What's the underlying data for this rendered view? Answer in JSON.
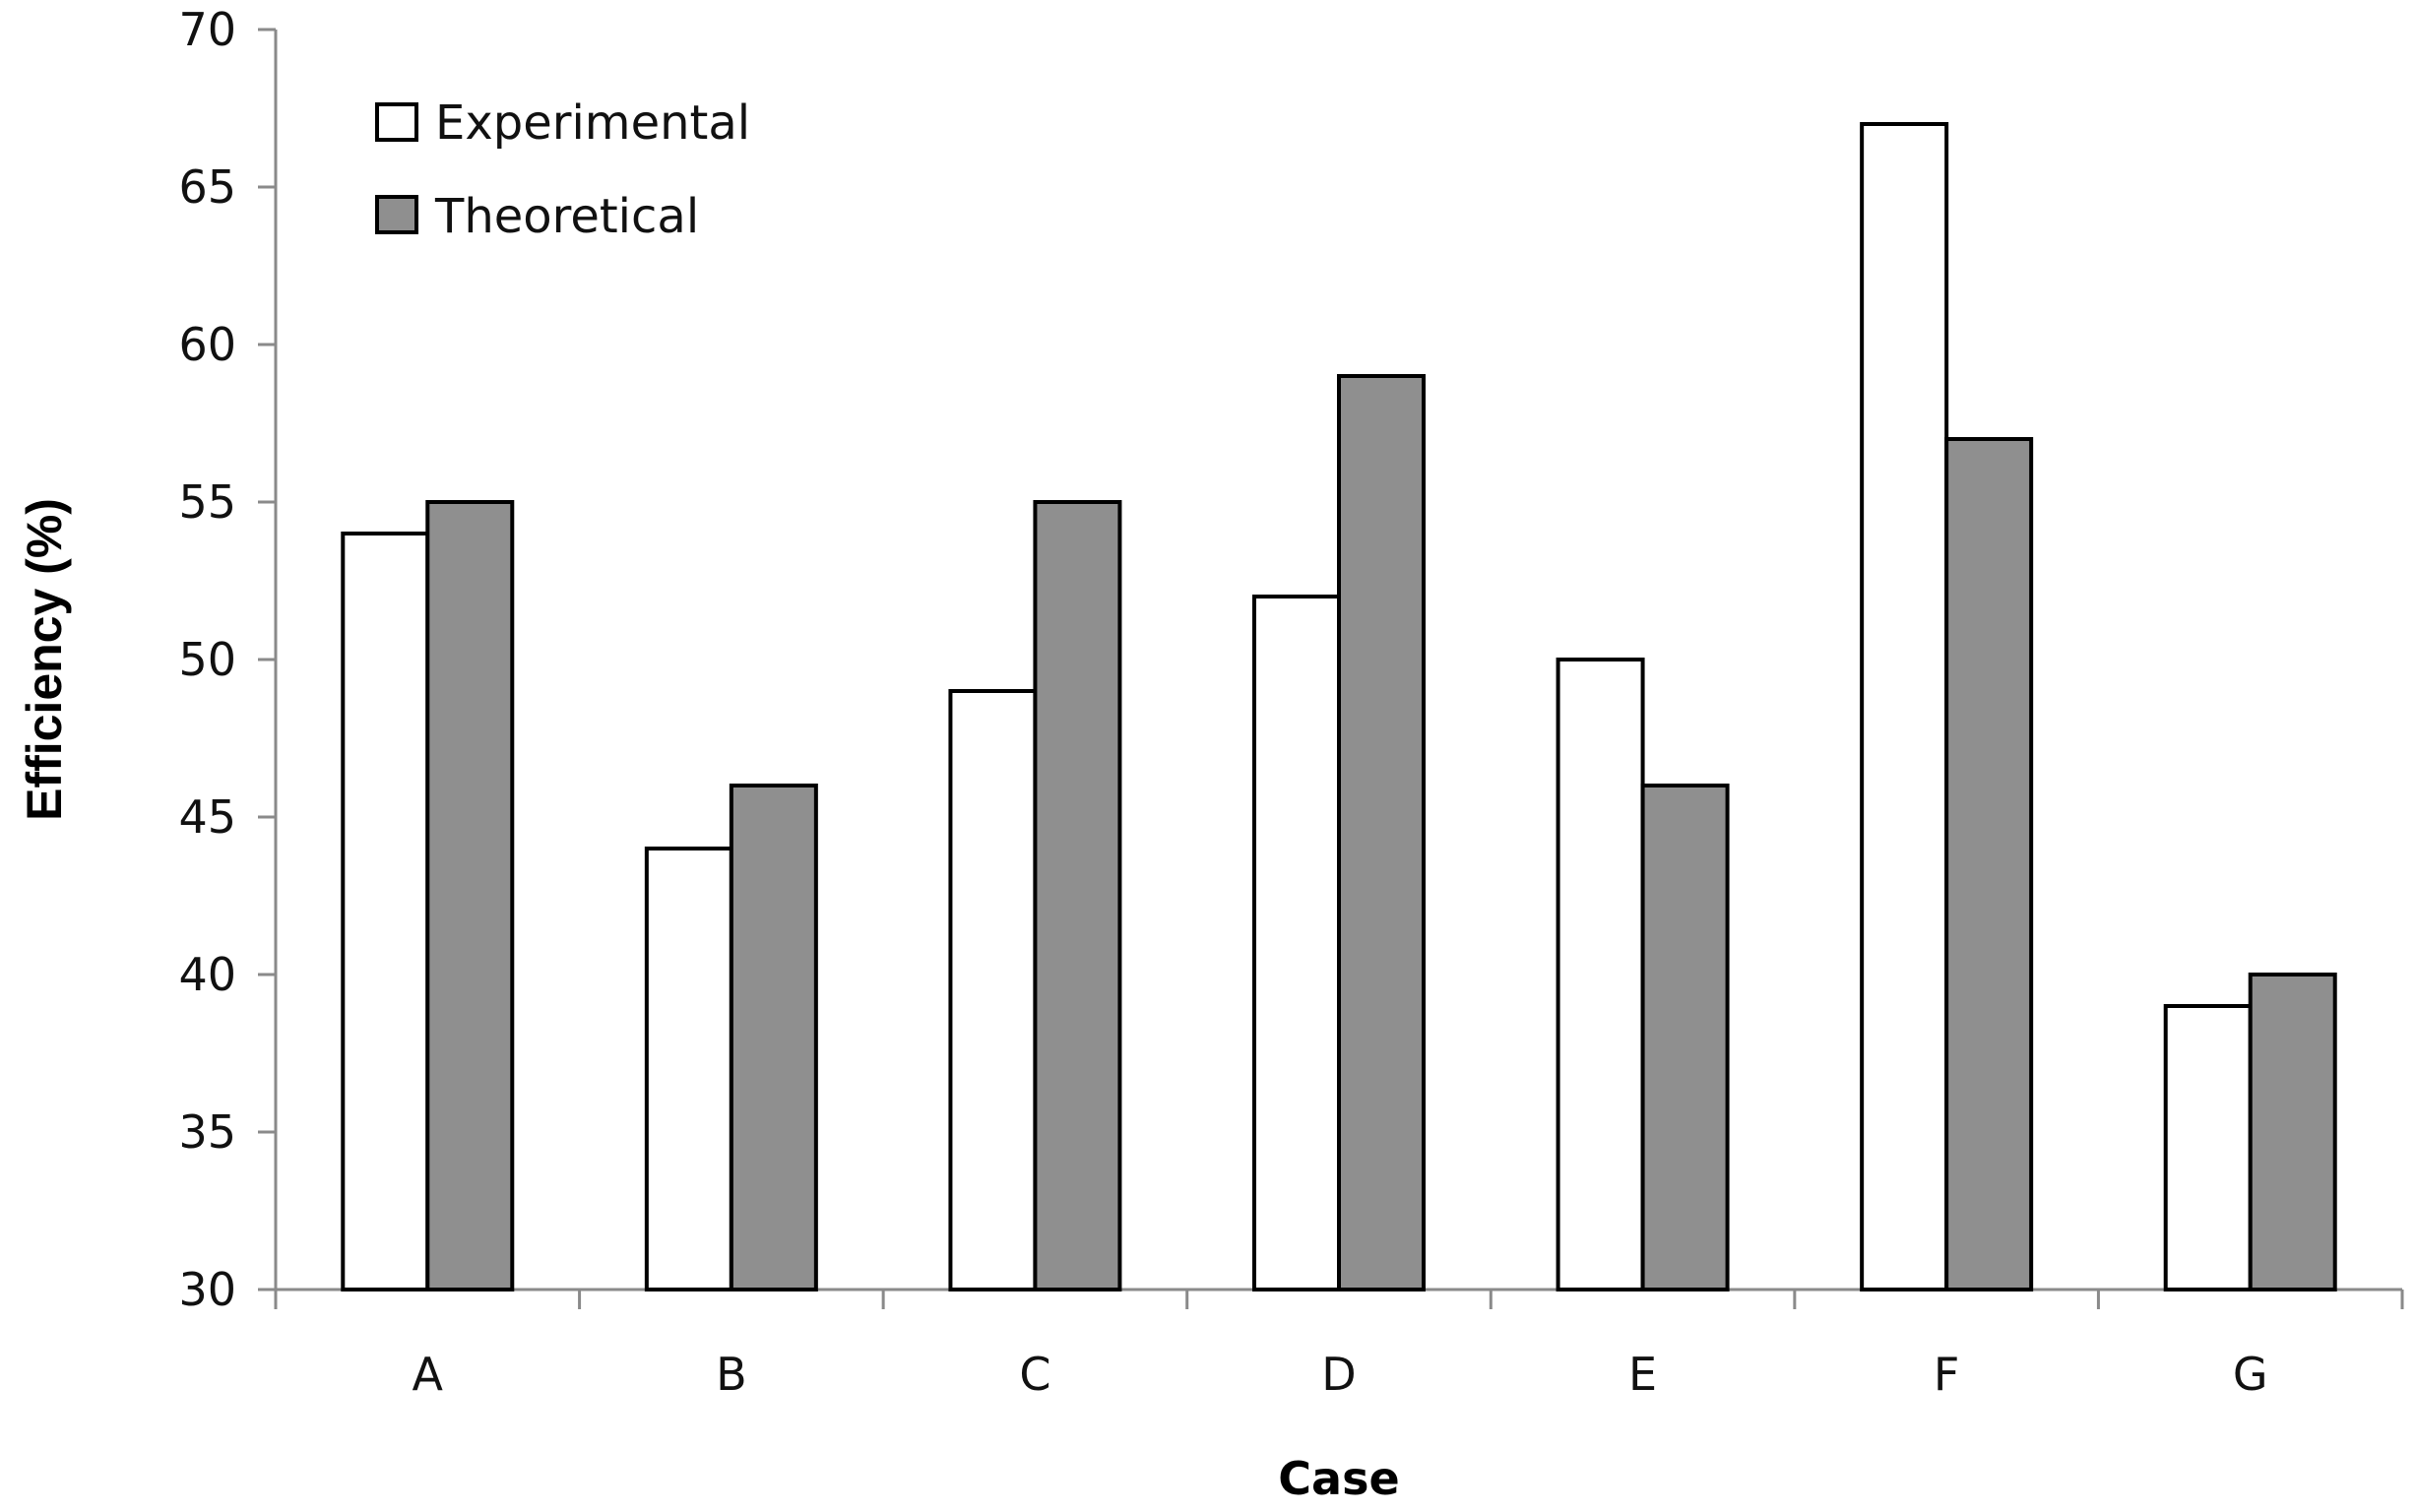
{
  "chart_data": {
    "type": "bar",
    "title": "",
    "xlabel": "Case",
    "ylabel": "Efficiency (%)",
    "ylim": [
      30,
      70
    ],
    "yticks": [
      30,
      35,
      40,
      45,
      50,
      55,
      60,
      65,
      70
    ],
    "categories": [
      "A",
      "B",
      "C",
      "D",
      "E",
      "F",
      "G"
    ],
    "series": [
      {
        "name": "Experimental",
        "color": "#ffffff",
        "values": [
          54,
          44,
          49,
          52,
          50,
          67,
          39
        ]
      },
      {
        "name": "Theoretical",
        "color": "#8f8f8f",
        "values": [
          55,
          46,
          55,
          59,
          46,
          57,
          40
        ]
      }
    ],
    "legend_position": "top-left",
    "grid": false
  }
}
